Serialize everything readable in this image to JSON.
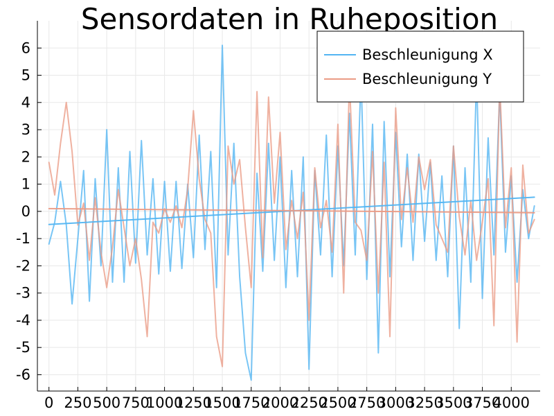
{
  "chart_data": {
    "type": "line",
    "title": "Sensordaten in Ruheposition",
    "xlabel": "",
    "ylabel": "",
    "xlim": [
      -100,
      4250
    ],
    "ylim": [
      -6.6,
      7.0
    ],
    "x_ticks": [
      0,
      250,
      500,
      750,
      1000,
      1250,
      1500,
      1750,
      2000,
      2250,
      2500,
      2750,
      3000,
      3250,
      3500,
      3750,
      4000
    ],
    "x_tick_labels": [
      "0",
      "250",
      "500",
      "750",
      "1000",
      "1250",
      "1500",
      "1750",
      "2000",
      "2250",
      "2500",
      "2750",
      "3000",
      "3250",
      "3500",
      "3750",
      "4000"
    ],
    "y_ticks": [
      -6,
      -5,
      -4,
      -3,
      -2,
      -1,
      0,
      1,
      2,
      3,
      4,
      5,
      6
    ],
    "y_tick_labels": [
      "-6",
      "-5",
      "-4",
      "-3",
      "-2",
      "-1",
      "0",
      "1",
      "2",
      "3",
      "4",
      "5",
      "6"
    ],
    "grid": true,
    "legend_position": "top-right",
    "series": [
      {
        "name": "Beschleunigung X",
        "color": "#52b5f2",
        "x": [
          0,
          50,
          100,
          150,
          200,
          250,
          300,
          350,
          400,
          450,
          500,
          550,
          600,
          650,
          700,
          750,
          800,
          850,
          900,
          950,
          1000,
          1050,
          1100,
          1150,
          1200,
          1250,
          1300,
          1350,
          1400,
          1450,
          1500,
          1550,
          1600,
          1650,
          1700,
          1750,
          1800,
          1850,
          1900,
          1950,
          2000,
          2050,
          2100,
          2150,
          2200,
          2250,
          2300,
          2350,
          2400,
          2450,
          2500,
          2550,
          2600,
          2650,
          2700,
          2750,
          2800,
          2850,
          2900,
          2950,
          3000,
          3050,
          3100,
          3150,
          3200,
          3250,
          3300,
          3350,
          3400,
          3450,
          3500,
          3550,
          3600,
          3650,
          3700,
          3750,
          3800,
          3850,
          3900,
          3950,
          4000,
          4050,
          4100,
          4150,
          4200
        ],
        "values": [
          -1.2,
          -0.4,
          1.1,
          -0.5,
          -3.4,
          -1.0,
          1.5,
          -3.3,
          1.2,
          -2.0,
          3.0,
          -2.6,
          1.6,
          -2.6,
          2.2,
          -1.9,
          2.6,
          -1.6,
          1.2,
          -2.3,
          1.1,
          -2.2,
          1.1,
          -2.1,
          1.0,
          -1.7,
          2.8,
          -1.4,
          2.2,
          -2.8,
          6.1,
          -1.6,
          2.5,
          -2.4,
          -5.2,
          -6.2,
          1.4,
          -2.2,
          2.5,
          -1.8,
          2.0,
          -2.8,
          1.5,
          -2.4,
          2.0,
          -5.8,
          1.5,
          -1.6,
          2.8,
          -2.4,
          2.4,
          -2.0,
          3.6,
          -1.6,
          5.0,
          -2.5,
          3.2,
          -5.2,
          3.3,
          -2.4,
          2.9,
          -1.3,
          2.1,
          -1.8,
          2.1,
          -1.1,
          1.8,
          -1.8,
          1.3,
          -2.4,
          2.4,
          -4.3,
          1.6,
          -2.6,
          5.0,
          -3.2,
          2.7,
          -1.6,
          4.4,
          -1.5,
          1.3,
          -2.6,
          0.8,
          -1.0,
          0.2
        ]
      },
      {
        "name": "Beschleunigung Y",
        "color": "#eb9b85",
        "x": [
          0,
          50,
          100,
          150,
          200,
          250,
          300,
          350,
          400,
          450,
          500,
          550,
          600,
          650,
          700,
          750,
          800,
          850,
          900,
          950,
          1000,
          1050,
          1100,
          1150,
          1200,
          1250,
          1300,
          1350,
          1400,
          1450,
          1500,
          1550,
          1600,
          1650,
          1700,
          1750,
          1800,
          1850,
          1900,
          1950,
          2000,
          2050,
          2100,
          2150,
          2200,
          2250,
          2300,
          2350,
          2400,
          2450,
          2500,
          2550,
          2600,
          2650,
          2700,
          2750,
          2800,
          2850,
          2900,
          2950,
          3000,
          3050,
          3100,
          3150,
          3200,
          3250,
          3300,
          3350,
          3400,
          3450,
          3500,
          3550,
          3600,
          3650,
          3700,
          3750,
          3800,
          3850,
          3900,
          3950,
          4000,
          4050,
          4100,
          4150,
          4200
        ],
        "values": [
          1.8,
          0.6,
          2.5,
          4.0,
          2.2,
          -0.5,
          0.3,
          -1.8,
          0.5,
          -1.5,
          -2.8,
          -1.3,
          0.8,
          -0.6,
          -2.0,
          -1.0,
          -2.5,
          -4.6,
          -0.4,
          -0.8,
          0.1,
          -0.4,
          0.2,
          -0.6,
          0.8,
          3.7,
          1.2,
          -0.3,
          -0.8,
          -4.6,
          -5.7,
          2.4,
          1.0,
          1.9,
          -0.6,
          -2.8,
          4.4,
          -1.7,
          4.2,
          0.3,
          2.9,
          -1.4,
          0.4,
          -1.0,
          0.7,
          -4.0,
          1.6,
          -0.6,
          0.4,
          -1.5,
          3.2,
          -3.0,
          4.8,
          -0.4,
          -0.7,
          -1.8,
          2.2,
          -3.0,
          1.8,
          -4.6,
          3.8,
          -0.3,
          1.6,
          -0.4,
          2.0,
          0.8,
          1.9,
          -0.5,
          -1.0,
          -1.5,
          2.4,
          -0.2,
          -1.6,
          0.4,
          -1.8,
          -0.4,
          1.2,
          -4.2,
          4.7,
          -0.6,
          1.6,
          -4.8,
          1.7,
          -0.8,
          -0.3
        ]
      },
      {
        "name": "",
        "color": "#52b5f2",
        "x": [
          0,
          4200
        ],
        "values": [
          -0.48,
          0.52
        ]
      },
      {
        "name": "",
        "color": "#eb9b85",
        "x": [
          0,
          4200
        ],
        "values": [
          0.1,
          -0.05
        ]
      }
    ]
  }
}
